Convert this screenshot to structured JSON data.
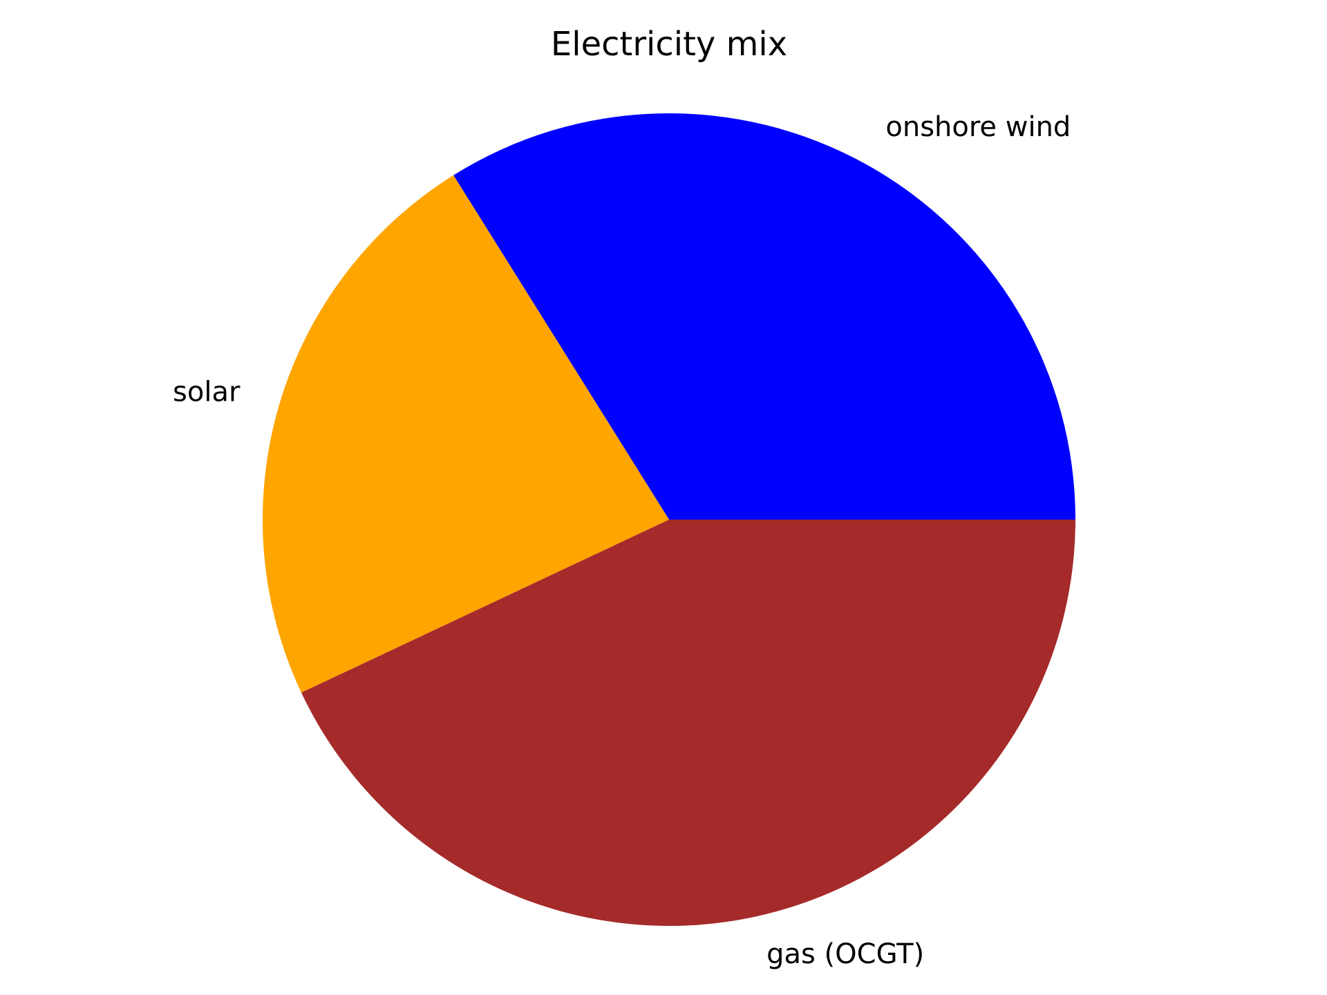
{
  "chart_data": {
    "type": "pie",
    "title": "Electricity mix",
    "start_angle_deg": 0,
    "direction": "counterclockwise",
    "slices": [
      {
        "label": "onshore wind",
        "value": 0.339,
        "color": "#0000ff"
      },
      {
        "label": "solar",
        "value": 0.231,
        "color": "#ffa500"
      },
      {
        "label": "gas (OCGT)",
        "value": 0.43,
        "color": "#a52a2a"
      }
    ]
  }
}
